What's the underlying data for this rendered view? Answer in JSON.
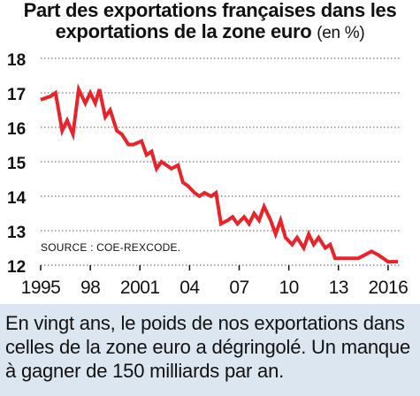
{
  "title_line1": "Part des exportations françaises dans les",
  "title_line2": "exportations de la zone euro",
  "title_unit": "(en %)",
  "caption": "En vingt ans, le poids de nos exportations dans celles de la zone euro a dégringolé. Un manque à gagner de 150 milliards par an.",
  "colors": {
    "line": "#e8232a",
    "text": "#111111",
    "grid": "#555555",
    "caption_bg": "#dbe6f1"
  },
  "chart_data": {
    "type": "line",
    "source": "SOURCE : COE-REXCODE.",
    "ylim": [
      12,
      18
    ],
    "yticks": [
      12,
      13,
      14,
      15,
      16,
      17,
      18
    ],
    "xlim": [
      1995,
      2016.7
    ],
    "xticks": [
      {
        "value": 1995,
        "label": "1995"
      },
      {
        "value": 1998,
        "label": "98"
      },
      {
        "value": 2001,
        "label": "2001"
      },
      {
        "value": 2004,
        "label": "04"
      },
      {
        "value": 2007,
        "label": "07"
      },
      {
        "value": 2010,
        "label": "10"
      },
      {
        "value": 2013,
        "label": "13"
      },
      {
        "value": 2016,
        "label": "2016"
      }
    ],
    "grid": true,
    "series": [
      {
        "x": [
          1995.0,
          1995.6,
          1995.9,
          1996.3,
          1996.6,
          1996.95,
          1997.3,
          1997.7,
          1998.0,
          1998.3,
          1998.55,
          1998.9,
          1999.2,
          1999.6,
          1999.9,
          2000.3,
          2000.6,
          2001.1,
          2001.4,
          2001.7,
          2002.0,
          2002.3,
          2002.6,
          2002.9,
          2003.3,
          2003.6,
          2003.9,
          2004.3,
          2004.6,
          2004.9,
          2005.3,
          2005.6,
          2005.9,
          2006.3,
          2006.6,
          2006.9,
          2007.3,
          2007.6,
          2007.9,
          2008.2,
          2008.5,
          2008.9,
          2009.2,
          2009.5,
          2009.8,
          2010.2,
          2010.5,
          2010.9,
          2011.2,
          2011.5,
          2011.8,
          2012.2,
          2012.5,
          2012.8,
          2013.1,
          2013.5,
          2013.8,
          2014.2,
          2014.6,
          2015.0,
          2015.4,
          2015.7,
          2016.0,
          2016.3,
          2016.6
        ],
        "y": [
          16.8,
          16.9,
          17.0,
          15.9,
          16.2,
          15.8,
          17.1,
          16.7,
          17.0,
          16.7,
          17.1,
          16.3,
          16.5,
          15.9,
          15.8,
          15.5,
          15.5,
          15.6,
          15.2,
          15.3,
          14.8,
          15.0,
          14.9,
          14.8,
          14.9,
          14.4,
          14.3,
          14.1,
          14.0,
          14.1,
          14.0,
          14.1,
          13.2,
          13.3,
          13.4,
          13.2,
          13.4,
          13.2,
          13.5,
          13.3,
          13.7,
          13.3,
          12.9,
          13.3,
          12.8,
          12.6,
          12.8,
          12.5,
          12.9,
          12.6,
          12.8,
          12.5,
          12.6,
          12.2,
          12.2,
          12.2,
          12.2,
          12.2,
          12.3,
          12.4,
          12.3,
          12.2,
          12.1,
          12.1,
          12.1
        ]
      }
    ]
  }
}
